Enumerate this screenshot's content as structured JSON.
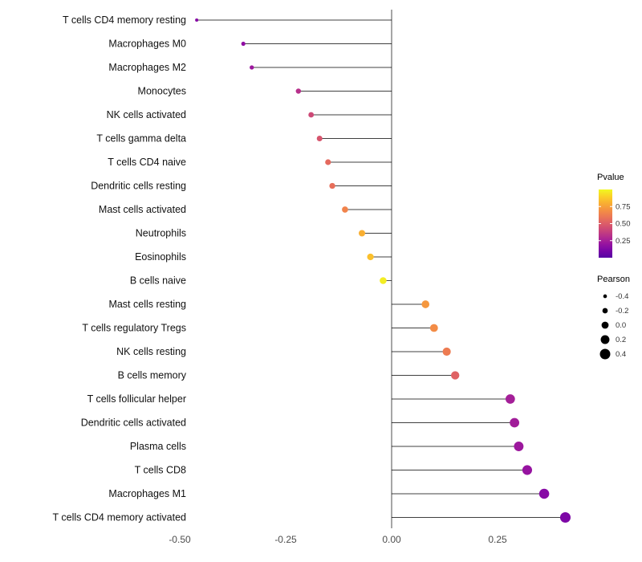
{
  "chart_data": {
    "type": "lollipop",
    "orientation": "horizontal",
    "title": "",
    "xlabel": "",
    "ylabel": "",
    "grid": false,
    "background": "#ffffff",
    "stem_color": "#000000",
    "zero_line_color": "#000000",
    "colormap": "plasma",
    "legend_position": "right",
    "categories": [
      "T cells CD4 memory resting",
      "Macrophages M0",
      "Macrophages M2",
      "Monocytes",
      "NK cells activated",
      "T cells gamma delta",
      "T cells CD4 naive",
      "Dendritic cells resting",
      "Mast cells activated",
      "Neutrophils",
      "Eosinophils",
      "B cells naive",
      "Mast cells resting",
      "T cells regulatory Tregs",
      "NK cells resting",
      "B cells memory",
      "T cells follicular helper",
      "Dendritic cells activated",
      "Plasma cells",
      "T cells CD8",
      "Macrophages M1",
      "T cells CD4 memory activated"
    ],
    "series": [
      {
        "name": "Pearson",
        "values": [
          -0.46,
          -0.35,
          -0.33,
          -0.22,
          -0.19,
          -0.17,
          -0.15,
          -0.14,
          -0.11,
          -0.07,
          -0.05,
          -0.02,
          0.08,
          0.1,
          0.13,
          0.15,
          0.28,
          0.29,
          0.3,
          0.32,
          0.36,
          0.41
        ]
      },
      {
        "name": "Pvalue",
        "values": [
          0.15,
          0.18,
          0.22,
          0.32,
          0.42,
          0.47,
          0.55,
          0.57,
          0.65,
          0.8,
          0.85,
          0.97,
          0.72,
          0.68,
          0.62,
          0.52,
          0.25,
          0.24,
          0.22,
          0.2,
          0.15,
          0.12
        ]
      }
    ],
    "x_axis": {
      "ticks": [
        -0.5,
        -0.25,
        0,
        0.25
      ],
      "tick_labels": [
        "-0.50",
        "-0.25",
        "0.00",
        "0.25"
      ],
      "range": [
        -0.5,
        0.45
      ]
    },
    "legend": {
      "pvalue": {
        "title": "Pvalue",
        "tick_values": [
          0.75,
          0.5,
          0.25
        ],
        "tick_labels": [
          "0.75",
          "0.50",
          "0.25"
        ],
        "range": [
          0,
          1
        ]
      },
      "pearson": {
        "title": "Pearson",
        "dot_color": "#000000",
        "items": [
          {
            "label": "-0.4",
            "value": -0.4
          },
          {
            "label": "-0.2",
            "value": -0.2
          },
          {
            "label": "0.0",
            "value": 0.0
          },
          {
            "label": "0.2",
            "value": 0.2
          },
          {
            "label": "0.4",
            "value": 0.4
          }
        ]
      }
    }
  }
}
